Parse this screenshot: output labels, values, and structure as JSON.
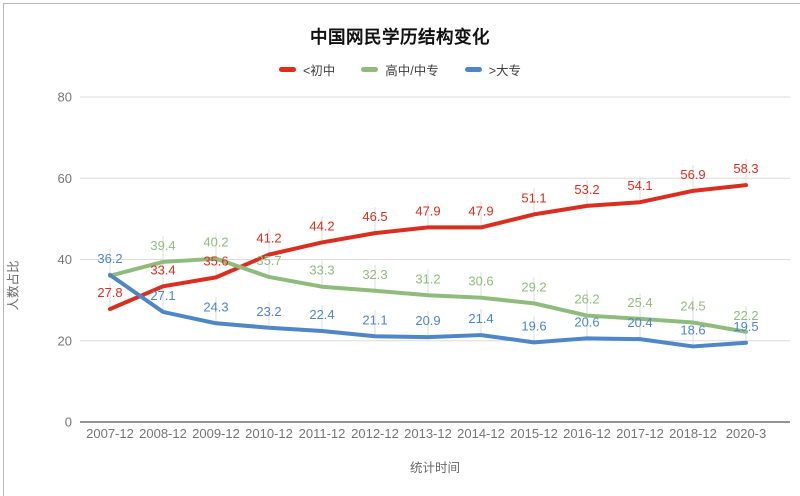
{
  "page": {
    "background": "#ffffff",
    "border_color": "#b7b7b7"
  },
  "chart_data": {
    "type": "line",
    "title": "中国网民学历结构变化",
    "xlabel": "统计时间",
    "ylabel": "人数占比",
    "ylim": [
      0,
      80
    ],
    "yticks": [
      0,
      20,
      40,
      60,
      80
    ],
    "grid": "horizontal",
    "legend_position": "top",
    "label_decimals": 1,
    "categories": [
      "2007-12",
      "2008-12",
      "2009-12",
      "2010-12",
      "2011-12",
      "2012-12",
      "2013-12",
      "2014-12",
      "2015-12",
      "2016-12",
      "2017-12",
      "2018-12",
      "2020-3"
    ],
    "series": [
      {
        "name": "<初中",
        "color": "#db2e1f",
        "values": [
          27.8,
          33.4,
          35.6,
          41.2,
          44.2,
          46.5,
          47.9,
          47.9,
          51.1,
          53.2,
          54.1,
          56.9,
          58.3
        ],
        "hidden_labels": []
      },
      {
        "name": "高中/中专",
        "color": "#8fbc7d",
        "values": [
          36.0,
          39.4,
          40.2,
          35.7,
          33.3,
          32.3,
          31.2,
          30.6,
          29.2,
          26.2,
          25.4,
          24.5,
          22.2
        ],
        "hidden_labels": [
          0
        ]
      },
      {
        "name": ">大专",
        "color": "#4e86c8",
        "values": [
          36.2,
          27.1,
          24.3,
          23.2,
          22.4,
          21.1,
          20.9,
          21.4,
          19.6,
          20.6,
          20.4,
          18.6,
          19.5
        ],
        "hidden_labels": []
      }
    ],
    "colors": {
      "grid": "#dcdcdc",
      "axis": "#545454",
      "tick_label": "#757575",
      "leader_line": "#dcdcdc"
    }
  }
}
